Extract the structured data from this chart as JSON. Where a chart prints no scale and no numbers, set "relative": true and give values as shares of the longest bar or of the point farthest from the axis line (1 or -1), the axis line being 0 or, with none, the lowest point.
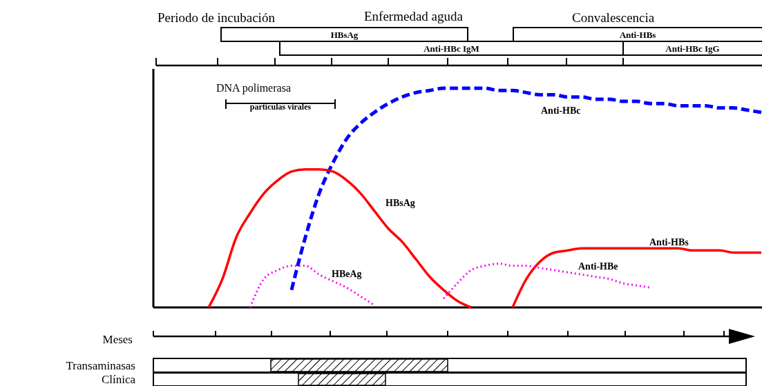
{
  "chart_data": {
    "type": "line",
    "relative": true,
    "categories": [
      null,
      null,
      null,
      null,
      null,
      null,
      null,
      null,
      null,
      null,
      null,
      null,
      null,
      null,
      null,
      null,
      null,
      null,
      null,
      null,
      null,
      null,
      null,
      null,
      null,
      null,
      null,
      null,
      null,
      null,
      null,
      null,
      null,
      null,
      null,
      null,
      null,
      null,
      null,
      null,
      null,
      null,
      null,
      null,
      null
    ],
    "series": [
      {
        "name": "Anti-HBc",
        "color": "#0000ff",
        "line_style": "dashed",
        "values": [
          null,
          null,
          null,
          null,
          null,
          null,
          null,
          null,
          null,
          null,
          0.08,
          0.32,
          0.52,
          0.66,
          0.77,
          0.84,
          0.89,
          0.93,
          0.96,
          0.98,
          0.99,
          1.0,
          1.0,
          1.0,
          1.0,
          0.99,
          0.99,
          0.98,
          0.97,
          0.97,
          0.96,
          0.96,
          0.95,
          0.95,
          0.94,
          0.94,
          0.93,
          0.93,
          0.92,
          0.92,
          0.92,
          0.91,
          0.91,
          0.9,
          0.89
        ]
      },
      {
        "name": "HBsAg",
        "color": "#ff0000",
        "line_style": "solid",
        "values": [
          null,
          null,
          null,
          null,
          0,
          0.13,
          0.32,
          0.43,
          0.52,
          0.58,
          0.62,
          0.63,
          0.63,
          0.62,
          0.58,
          0.52,
          0.44,
          0.36,
          0.3,
          0.22,
          0.14,
          0.08,
          0.03,
          0,
          null,
          null,
          null,
          null,
          null,
          null,
          null,
          null,
          null,
          null,
          null,
          null,
          null,
          null,
          null,
          null,
          null,
          null,
          null,
          null,
          null
        ]
      },
      {
        "name": "Anti-HBs",
        "color": "#ff0000",
        "line_style": "solid",
        "values": [
          null,
          null,
          null,
          null,
          null,
          null,
          null,
          null,
          null,
          null,
          null,
          null,
          null,
          null,
          null,
          null,
          null,
          null,
          null,
          null,
          null,
          null,
          null,
          null,
          null,
          null,
          0,
          0.13,
          0.21,
          0.25,
          0.26,
          0.27,
          0.27,
          0.27,
          0.27,
          0.27,
          0.27,
          0.27,
          0.27,
          0.26,
          0.26,
          0.26,
          0.25,
          0.25,
          0.25
        ]
      },
      {
        "name": "HBeAg",
        "color": "#ff00ff",
        "line_style": "dotted",
        "values": [
          null,
          null,
          null,
          null,
          null,
          null,
          null,
          0,
          0.13,
          0.17,
          0.19,
          0.19,
          0.15,
          0.12,
          0.09,
          0.05,
          0.01,
          null,
          null,
          null,
          null,
          null,
          null,
          null,
          null,
          null,
          null,
          null,
          null,
          null,
          null,
          null,
          null,
          null,
          null,
          null,
          null,
          null,
          null,
          null,
          null,
          null,
          null,
          null,
          null
        ]
      },
      {
        "name": "Anti-HBe",
        "color": "#ff00ff",
        "line_style": "dotted",
        "values": [
          null,
          null,
          null,
          null,
          null,
          null,
          null,
          null,
          null,
          null,
          null,
          null,
          null,
          null,
          null,
          null,
          null,
          null,
          null,
          null,
          null,
          0.04,
          0.11,
          0.17,
          0.19,
          0.2,
          0.19,
          0.19,
          0.18,
          0.17,
          0.16,
          0.15,
          0.14,
          0.13,
          0.11,
          0.1,
          0.09,
          null,
          null,
          null,
          null,
          null,
          null,
          null,
          null
        ]
      }
    ],
    "annotations": [
      "Periodo de incubación",
      "Enfermedad aguda",
      "Convalescencia",
      "HBsAg",
      "Anti-HBs",
      "Anti-HBc IgM",
      "Anti-HBc IgG",
      "DNA polimerasa",
      "partículas virales",
      "Meses",
      "Transaminasas",
      "Clínica"
    ]
  }
}
